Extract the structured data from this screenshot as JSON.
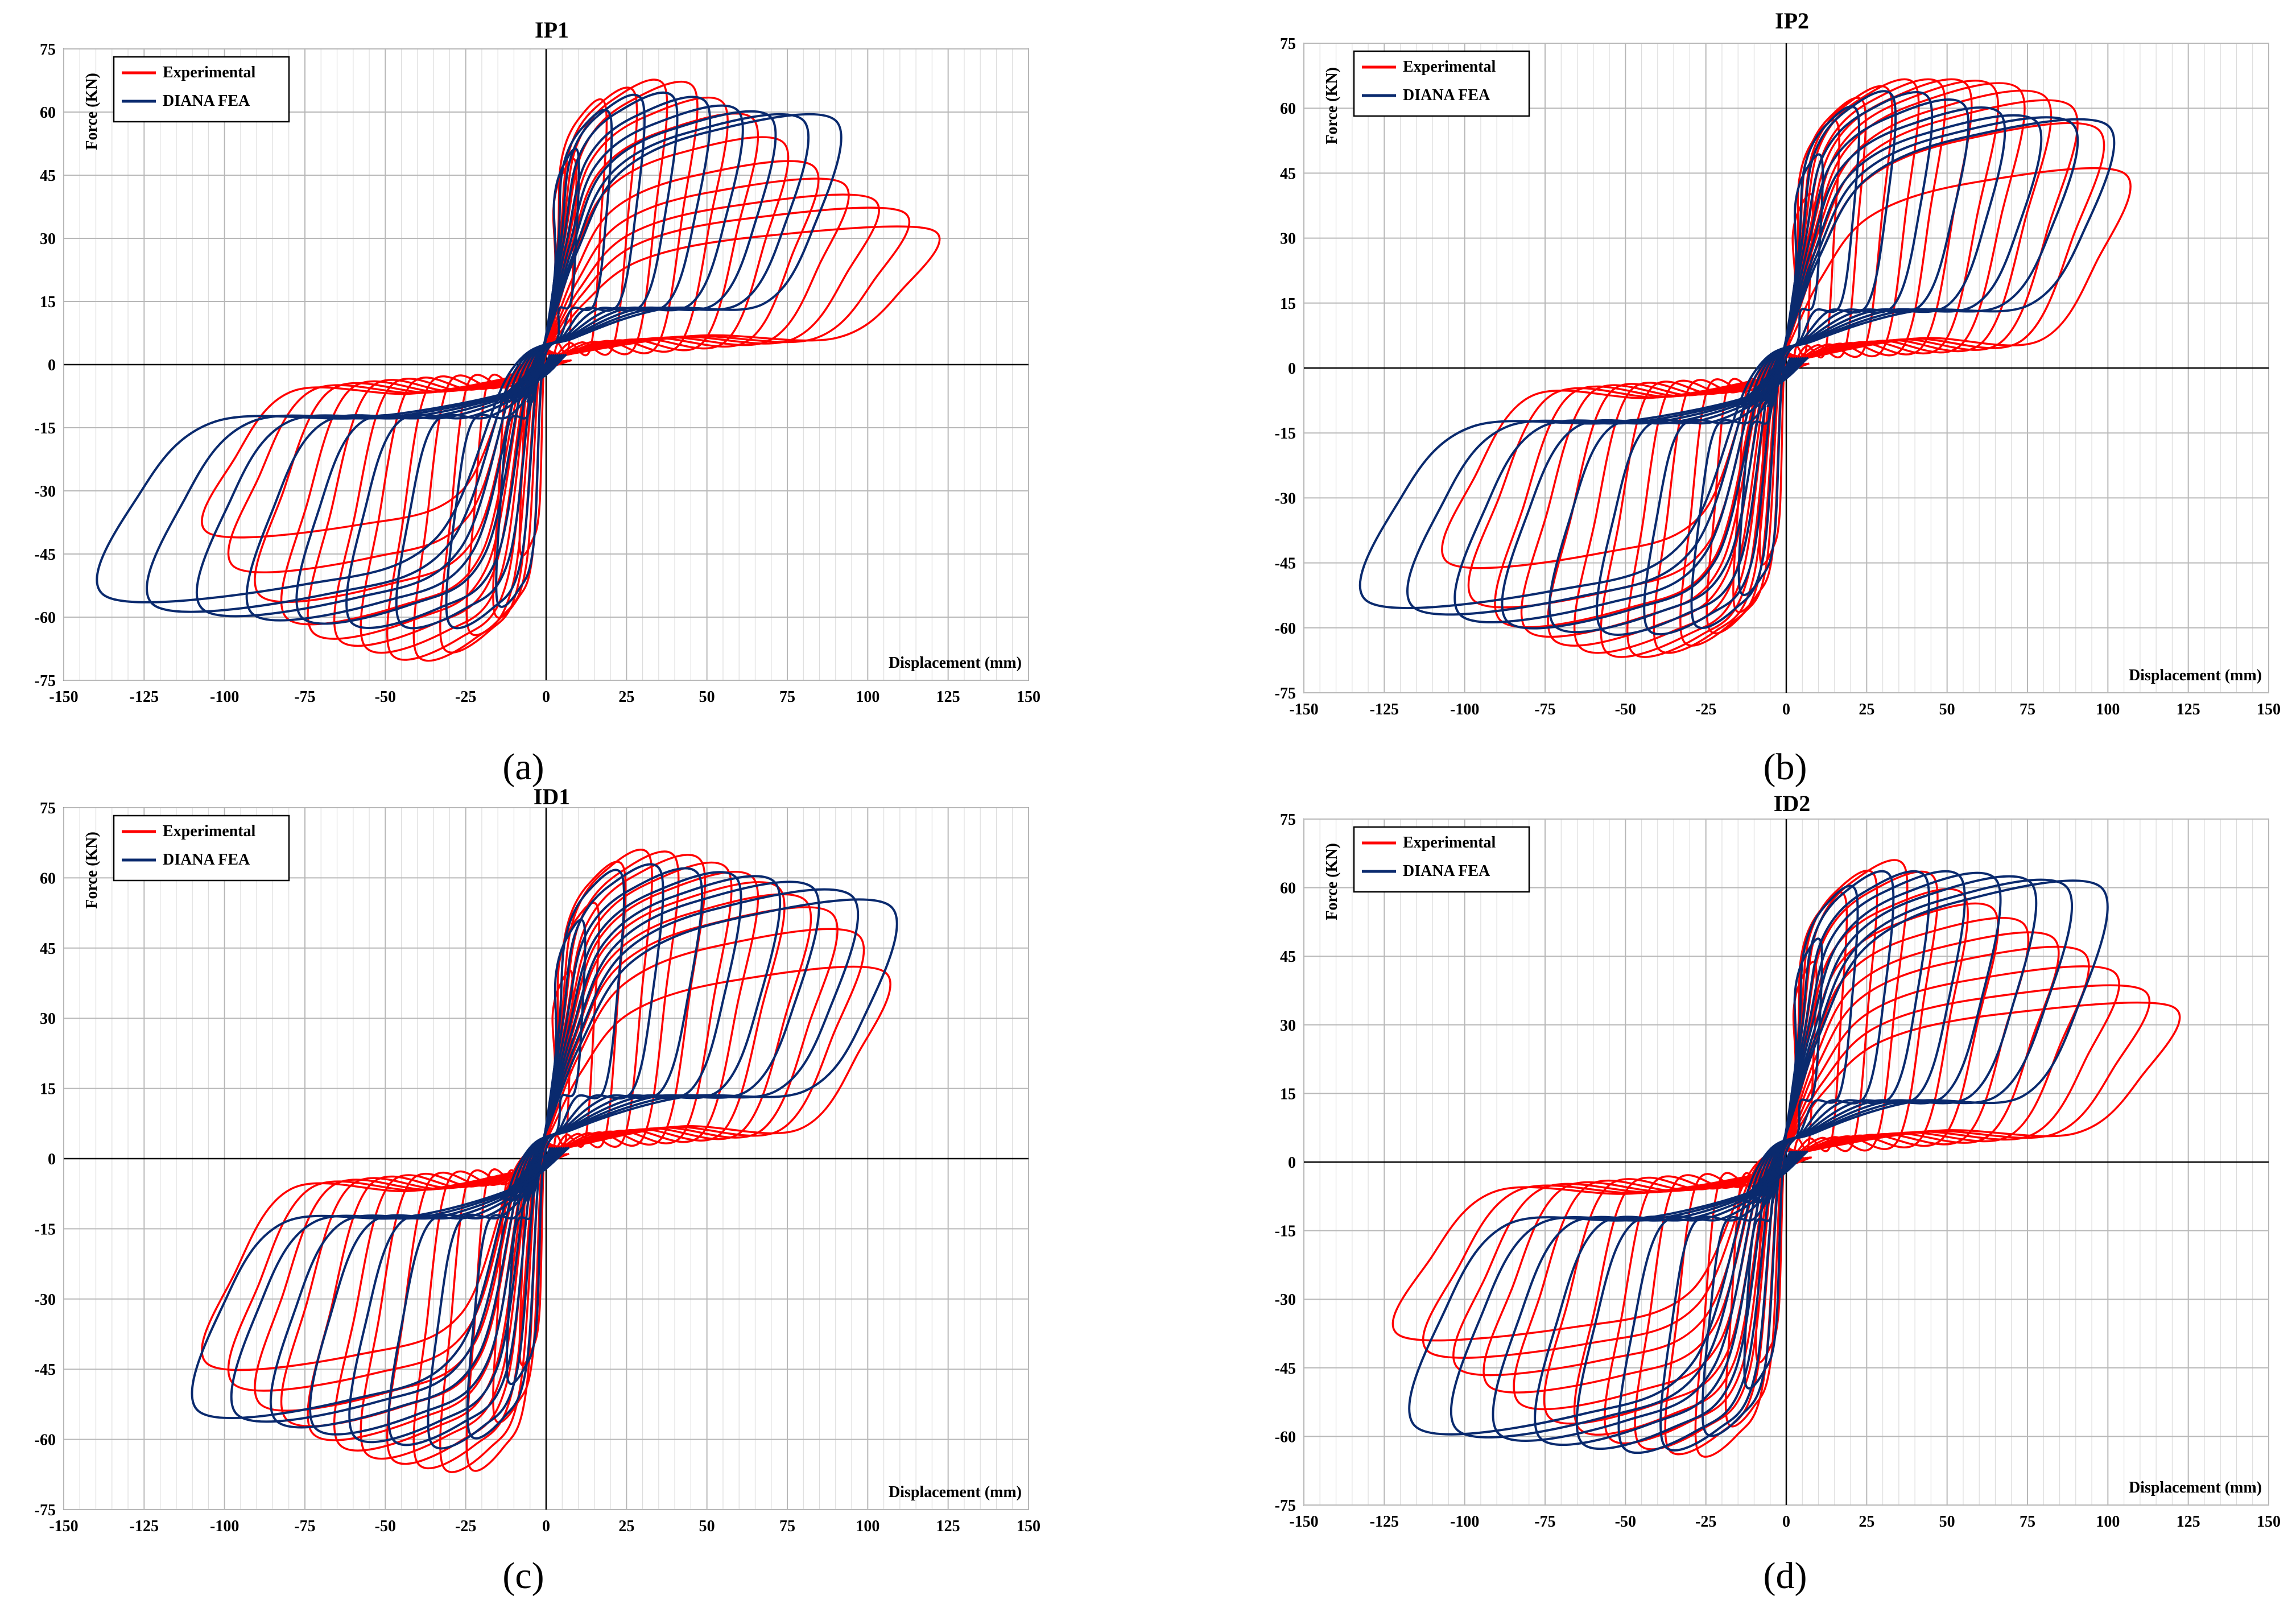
{
  "figure": {
    "captions": [
      "(a)",
      "(b)",
      "(c)",
      "(d)"
    ]
  },
  "colors": {
    "experimental": "#ff0000",
    "fea": "#0a2a6e",
    "grid": "#cfcfcf",
    "axis": "#000000"
  },
  "chart_data": [
    {
      "type": "line",
      "title": "IP1",
      "xlabel": "Displacement (mm)",
      "ylabel": "Force (KN)",
      "xlim": [
        -150,
        150
      ],
      "ylim": [
        -75,
        75
      ],
      "xticks": [
        -150,
        -125,
        -100,
        -75,
        -50,
        -25,
        0,
        25,
        50,
        75,
        100,
        125,
        150
      ],
      "yticks": [
        -75,
        -60,
        -45,
        -30,
        -15,
        0,
        15,
        30,
        45,
        60,
        75
      ],
      "grid": true,
      "legend": [
        "Experimental",
        "DIANA FEA"
      ],
      "legend_position": "top-left",
      "series": [
        {
          "name": "Experimental",
          "envelope_positive": [
            [
              5,
              35
            ],
            [
              10,
              50
            ],
            [
              15,
              58
            ],
            [
              20,
              63
            ],
            [
              27,
              64
            ],
            [
              35,
              66
            ],
            [
              45,
              66
            ],
            [
              55,
              62
            ],
            [
              65,
              58
            ],
            [
              75,
              52
            ],
            [
              85,
              46
            ],
            [
              95,
              42
            ],
            [
              105,
              38
            ],
            [
              112,
              36
            ],
            [
              120,
              32
            ]
          ],
          "envelope_negative": [
            [
              -5,
              -35
            ],
            [
              -10,
              -50
            ],
            [
              -15,
              -58
            ],
            [
              -25,
              -63
            ],
            [
              -35,
              -68
            ],
            [
              -45,
              -69
            ],
            [
              -55,
              -67
            ],
            [
              -65,
              -65
            ],
            [
              -75,
              -63
            ],
            [
              -85,
              -58
            ],
            [
              -95,
              -50
            ],
            [
              -105,
              -40
            ]
          ]
        },
        {
          "name": "DIANA FEA",
          "envelope_positive": [
            [
              5,
              40
            ],
            [
              10,
              50
            ],
            [
              15,
              56
            ],
            [
              25,
              62
            ],
            [
              35,
              63
            ],
            [
              45,
              63
            ],
            [
              60,
              60
            ],
            [
              75,
              58
            ],
            [
              90,
              58
            ]
          ],
          "envelope_negative": [
            [
              -5,
              -40
            ],
            [
              -15,
              -56
            ],
            [
              -30,
              -61
            ],
            [
              -45,
              -61
            ],
            [
              -60,
              -61
            ],
            [
              -75,
              -60
            ],
            [
              -95,
              -59
            ],
            [
              -110,
              -58
            ],
            [
              -125,
              -57
            ],
            [
              -137,
              -55
            ]
          ]
        }
      ]
    },
    {
      "type": "line",
      "title": "IP2",
      "xlabel": "Displacement (mm)",
      "ylabel": "Force (KN)",
      "xlim": [
        -150,
        150
      ],
      "ylim": [
        -75,
        75
      ],
      "xticks": [
        -150,
        -125,
        -100,
        -75,
        -50,
        -25,
        0,
        25,
        50,
        75,
        100,
        125,
        150
      ],
      "yticks": [
        -75,
        -60,
        -45,
        -30,
        -15,
        0,
        15,
        30,
        45,
        60,
        75
      ],
      "grid": true,
      "legend": [
        "Experimental",
        "DIANA FEA"
      ],
      "legend_position": "top-left",
      "series": [
        {
          "name": "Experimental",
          "envelope_positive": [
            [
              5,
              30
            ],
            [
              10,
              45
            ],
            [
              15,
              55
            ],
            [
              22,
              60
            ],
            [
              30,
              63
            ],
            [
              40,
              65
            ],
            [
              50,
              65
            ],
            [
              60,
              65
            ],
            [
              75,
              64
            ],
            [
              90,
              60
            ],
            [
              100,
              53
            ],
            [
              105,
              45
            ]
          ],
          "envelope_negative": [
            [
              -5,
              -35
            ],
            [
              -10,
              -50
            ],
            [
              -20,
              -58
            ],
            [
              -30,
              -62
            ],
            [
              -45,
              -65
            ],
            [
              -60,
              -65
            ],
            [
              -75,
              -62
            ],
            [
              -90,
              -58
            ],
            [
              -100,
              -52
            ],
            [
              -105,
              -45
            ]
          ]
        },
        {
          "name": "DIANA FEA",
          "envelope_positive": [
            [
              5,
              35
            ],
            [
              12,
              50
            ],
            [
              20,
              58
            ],
            [
              30,
              62
            ],
            [
              40,
              63
            ],
            [
              50,
              61
            ],
            [
              60,
              60
            ],
            [
              75,
              57
            ],
            [
              100,
              56
            ]
          ],
          "envelope_negative": [
            [
              -5,
              -35
            ],
            [
              -15,
              -52
            ],
            [
              -30,
              -59
            ],
            [
              -45,
              -60
            ],
            [
              -60,
              -60
            ],
            [
              -80,
              -59
            ],
            [
              -95,
              -58
            ],
            [
              -110,
              -56
            ],
            [
              -130,
              -54
            ]
          ]
        }
      ]
    },
    {
      "type": "line",
      "title": "ID1",
      "xlabel": "Displacement (mm)",
      "ylabel": "Force (KN)",
      "xlim": [
        -150,
        150
      ],
      "ylim": [
        -75,
        75
      ],
      "xticks": [
        -150,
        -125,
        -100,
        -75,
        -50,
        -25,
        0,
        25,
        50,
        75,
        100,
        125,
        150
      ],
      "yticks": [
        -75,
        -60,
        -45,
        -30,
        -15,
        0,
        15,
        30,
        45,
        60,
        75
      ],
      "grid": true,
      "legend": [
        "Experimental",
        "DIANA FEA"
      ],
      "legend_position": "top-left",
      "series": [
        {
          "name": "Experimental",
          "envelope_positive": [
            [
              5,
              30
            ],
            [
              10,
              45
            ],
            [
              15,
              52
            ],
            [
              22,
              60
            ],
            [
              28,
              65
            ],
            [
              35,
              64
            ],
            [
              45,
              64
            ],
            [
              60,
              61
            ],
            [
              75,
              57
            ],
            [
              90,
              52
            ],
            [
              100,
              46
            ],
            [
              105,
              40
            ]
          ],
          "envelope_negative": [
            [
              -5,
              -35
            ],
            [
              -10,
              -48
            ],
            [
              -18,
              -57
            ],
            [
              -25,
              -66
            ],
            [
              -35,
              -65
            ],
            [
              -45,
              -64
            ],
            [
              -60,
              -62
            ],
            [
              -75,
              -58
            ],
            [
              -90,
              -52
            ],
            [
              -105,
              -44
            ]
          ]
        },
        {
          "name": "DIANA FEA",
          "envelope_positive": [
            [
              5,
              35
            ],
            [
              12,
              50
            ],
            [
              20,
              58
            ],
            [
              27,
              62
            ],
            [
              40,
              61
            ],
            [
              55,
              60
            ],
            [
              70,
              59
            ],
            [
              90,
              57
            ],
            [
              107,
              54
            ]
          ],
          "envelope_negative": [
            [
              -5,
              -35
            ],
            [
              -15,
              -52
            ],
            [
              -28,
              -61
            ],
            [
              -40,
              -60
            ],
            [
              -60,
              -59
            ],
            [
              -75,
              -57
            ],
            [
              -92,
              -55
            ],
            [
              -108,
              -54
            ]
          ]
        }
      ]
    },
    {
      "type": "line",
      "title": "ID2",
      "xlabel": "Displacement (mm)",
      "ylabel": "Force (KN)",
      "xlim": [
        -150,
        150
      ],
      "ylim": [
        -75,
        75
      ],
      "xticks": [
        -150,
        -125,
        -100,
        -75,
        -50,
        -25,
        0,
        25,
        50,
        75,
        100,
        125,
        150
      ],
      "yticks": [
        -75,
        -60,
        -45,
        -30,
        -15,
        0,
        15,
        30,
        45,
        60,
        75
      ],
      "grid": true,
      "legend": [
        "Experimental",
        "DIANA FEA"
      ],
      "legend_position": "top-left",
      "series": [
        {
          "name": "Experimental",
          "envelope_positive": [
            [
              5,
              30
            ],
            [
              10,
              45
            ],
            [
              15,
              55
            ],
            [
              22,
              60
            ],
            [
              30,
              63
            ],
            [
              40,
              65
            ],
            [
              50,
              60
            ],
            [
              65,
              55
            ],
            [
              80,
              50
            ],
            [
              95,
              45
            ],
            [
              105,
              40
            ],
            [
              120,
              34
            ]
          ],
          "envelope_negative": [
            [
              -5,
              -30
            ],
            [
              -10,
              -45
            ],
            [
              -18,
              -56
            ],
            [
              -28,
              -63
            ],
            [
              -40,
              -62
            ],
            [
              -55,
              -60
            ],
            [
              -70,
              -57
            ],
            [
              -85,
              -52
            ],
            [
              -100,
              -46
            ],
            [
              -120,
              -38
            ]
          ]
        },
        {
          "name": "DIANA FEA",
          "envelope_positive": [
            [
              5,
              35
            ],
            [
              12,
              50
            ],
            [
              20,
              58
            ],
            [
              28,
              62
            ],
            [
              45,
              62
            ],
            [
              60,
              62
            ],
            [
              75,
              61
            ],
            [
              90,
              60
            ],
            [
              98,
              60
            ]
          ],
          "envelope_negative": [
            [
              -5,
              -35
            ],
            [
              -15,
              -52
            ],
            [
              -30,
              -61
            ],
            [
              -50,
              -62
            ],
            [
              -65,
              -61
            ],
            [
              -80,
              -60
            ],
            [
              -95,
              -59
            ],
            [
              -115,
              -58
            ]
          ]
        }
      ]
    }
  ]
}
